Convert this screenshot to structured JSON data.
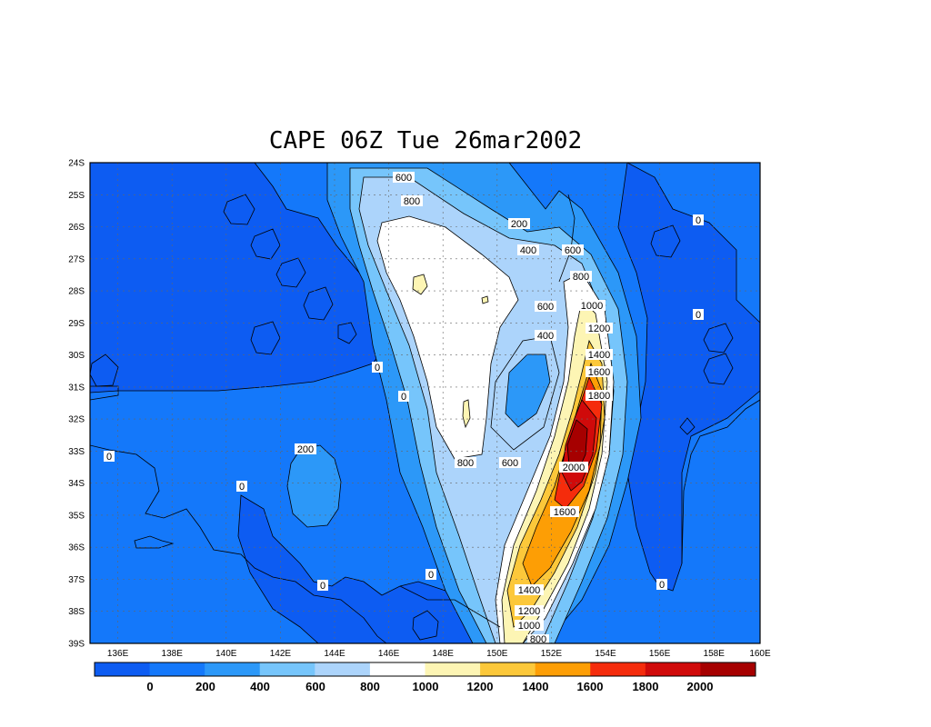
{
  "title": "CAPE 06Z Tue 26mar2002",
  "map": {
    "lat_labels": [
      "24S",
      "25S",
      "26S",
      "27S",
      "28S",
      "29S",
      "30S",
      "31S",
      "32S",
      "33S",
      "34S",
      "35S",
      "36S",
      "37S",
      "38S",
      "39S"
    ],
    "lon_labels": [
      "136E",
      "138E",
      "140E",
      "142E",
      "144E",
      "146E",
      "148E",
      "150E",
      "152E",
      "154E",
      "156E",
      "158E",
      "160E"
    ],
    "lat_range": [
      -39,
      -24
    ],
    "lon_range": [
      135,
      160
    ],
    "contour_labels": [
      "600",
      "800",
      "200",
      "400",
      "600",
      "800",
      "1000",
      "600",
      "400",
      "1200",
      "1400",
      "1600",
      "1800",
      "0",
      "0",
      "0",
      "0",
      "0",
      "2000",
      "200",
      "0",
      "800",
      "600",
      "1600",
      "0",
      "0",
      "0",
      "1400",
      "1200",
      "1000",
      "800"
    ]
  },
  "colorbar": {
    "levels": [
      "0",
      "200",
      "400",
      "600",
      "800",
      "1000",
      "1200",
      "1400",
      "1600",
      "1800",
      "2000"
    ],
    "colors": [
      "#0d5cf2",
      "#1478fa",
      "#2c98f8",
      "#76c5fb",
      "#acd4fb",
      "#ffffff",
      "#fdf5b4",
      "#fcc83a",
      "#fd9e05",
      "#f52c0c",
      "#d00a0a",
      "#a60000"
    ]
  }
}
